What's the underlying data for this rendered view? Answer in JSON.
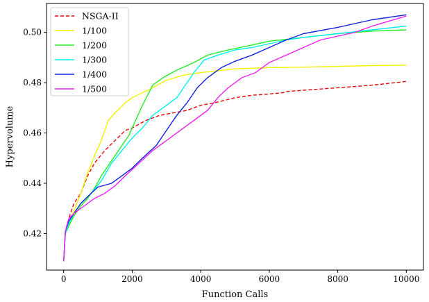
{
  "chart_data": {
    "type": "line",
    "xlabel": "Function Calls",
    "ylabel": "Hypervolume",
    "xlim": [
      -500,
      10500
    ],
    "ylim": [
      0.4055,
      0.5115
    ],
    "xticks": [
      0,
      2000,
      4000,
      6000,
      8000,
      10000
    ],
    "xtick_labels": [
      "0",
      "2000",
      "4000",
      "6000",
      "8000",
      "10000"
    ],
    "yticks": [
      0.42,
      0.44,
      0.46,
      0.48,
      0.5
    ],
    "ytick_labels": [
      "0.42",
      "0.44",
      "0.46",
      "0.48",
      "0.50"
    ],
    "grid": false,
    "legend_position": "top-left",
    "series": [
      {
        "name": "NSGA-II",
        "color": "#ee0000",
        "dashed": true,
        "points": [
          [
            0,
            0.409
          ],
          [
            50,
            0.421
          ],
          [
            150,
            0.426
          ],
          [
            300,
            0.432
          ],
          [
            500,
            0.436
          ],
          [
            700,
            0.443
          ],
          [
            900,
            0.448
          ],
          [
            1200,
            0.453
          ],
          [
            1500,
            0.457
          ],
          [
            1800,
            0.461
          ],
          [
            2000,
            0.462
          ],
          [
            2400,
            0.465
          ],
          [
            2800,
            0.467
          ],
          [
            3200,
            0.468
          ],
          [
            3600,
            0.469
          ],
          [
            4000,
            0.471
          ],
          [
            4400,
            0.472
          ],
          [
            5000,
            0.474
          ],
          [
            5500,
            0.475
          ],
          [
            6000,
            0.4755
          ],
          [
            6400,
            0.476
          ],
          [
            6500,
            0.4765
          ],
          [
            7000,
            0.477
          ],
          [
            8000,
            0.478
          ],
          [
            9000,
            0.479
          ],
          [
            10000,
            0.4805
          ]
        ]
      },
      {
        "name": "1/100",
        "color": "#f2f200",
        "dashed": false,
        "points": [
          [
            0,
            0.409
          ],
          [
            50,
            0.42
          ],
          [
            150,
            0.424
          ],
          [
            300,
            0.429
          ],
          [
            500,
            0.436
          ],
          [
            700,
            0.444
          ],
          [
            900,
            0.451
          ],
          [
            1100,
            0.457
          ],
          [
            1300,
            0.465
          ],
          [
            1500,
            0.468
          ],
          [
            1800,
            0.472
          ],
          [
            2000,
            0.474
          ],
          [
            2300,
            0.476
          ],
          [
            2600,
            0.478
          ],
          [
            3000,
            0.481
          ],
          [
            3500,
            0.483
          ],
          [
            4000,
            0.484
          ],
          [
            5000,
            0.4855
          ],
          [
            6000,
            0.486
          ],
          [
            7000,
            0.4862
          ],
          [
            8000,
            0.4865
          ],
          [
            9000,
            0.4868
          ],
          [
            10000,
            0.487
          ]
        ]
      },
      {
        "name": "1/200",
        "color": "#22ee22",
        "dashed": false,
        "points": [
          [
            0,
            0.409
          ],
          [
            50,
            0.42
          ],
          [
            150,
            0.423
          ],
          [
            300,
            0.427
          ],
          [
            500,
            0.431
          ],
          [
            700,
            0.434
          ],
          [
            900,
            0.438
          ],
          [
            1100,
            0.443
          ],
          [
            1300,
            0.447
          ],
          [
            1600,
            0.453
          ],
          [
            1900,
            0.459
          ],
          [
            2100,
            0.465
          ],
          [
            2300,
            0.471
          ],
          [
            2600,
            0.479
          ],
          [
            2900,
            0.482
          ],
          [
            3300,
            0.485
          ],
          [
            3800,
            0.488
          ],
          [
            4200,
            0.491
          ],
          [
            4800,
            0.493
          ],
          [
            5500,
            0.495
          ],
          [
            6000,
            0.4965
          ],
          [
            7000,
            0.498
          ],
          [
            8000,
            0.4995
          ],
          [
            9000,
            0.5005
          ],
          [
            10000,
            0.501
          ]
        ]
      },
      {
        "name": "1/300",
        "color": "#00f0f0",
        "dashed": false,
        "points": [
          [
            0,
            0.409
          ],
          [
            50,
            0.42
          ],
          [
            150,
            0.424
          ],
          [
            300,
            0.428
          ],
          [
            500,
            0.432
          ],
          [
            800,
            0.436
          ],
          [
            1100,
            0.441
          ],
          [
            1400,
            0.448
          ],
          [
            1700,
            0.453
          ],
          [
            2000,
            0.458
          ],
          [
            2300,
            0.462
          ],
          [
            2600,
            0.467
          ],
          [
            3000,
            0.471
          ],
          [
            3300,
            0.474
          ],
          [
            3500,
            0.478
          ],
          [
            3800,
            0.484
          ],
          [
            4100,
            0.489
          ],
          [
            4500,
            0.491
          ],
          [
            5000,
            0.493
          ],
          [
            5500,
            0.494
          ],
          [
            6000,
            0.4955
          ],
          [
            6500,
            0.497
          ],
          [
            7000,
            0.498
          ],
          [
            8000,
            0.4995
          ],
          [
            9000,
            0.501
          ],
          [
            10000,
            0.5025
          ]
        ]
      },
      {
        "name": "1/400",
        "color": "#1122dd",
        "dashed": false,
        "points": [
          [
            0,
            0.409
          ],
          [
            50,
            0.421
          ],
          [
            150,
            0.425
          ],
          [
            300,
            0.428
          ],
          [
            500,
            0.432
          ],
          [
            800,
            0.436
          ],
          [
            1000,
            0.4385
          ],
          [
            1400,
            0.44
          ],
          [
            1700,
            0.443
          ],
          [
            2000,
            0.446
          ],
          [
            2300,
            0.45
          ],
          [
            2700,
            0.455
          ],
          [
            3000,
            0.461
          ],
          [
            3300,
            0.467
          ],
          [
            3600,
            0.472
          ],
          [
            3900,
            0.478
          ],
          [
            4200,
            0.482
          ],
          [
            4600,
            0.486
          ],
          [
            5000,
            0.4885
          ],
          [
            5500,
            0.491
          ],
          [
            6000,
            0.494
          ],
          [
            6500,
            0.497
          ],
          [
            7000,
            0.4995
          ],
          [
            8000,
            0.502
          ],
          [
            9000,
            0.505
          ],
          [
            10000,
            0.507
          ]
        ]
      },
      {
        "name": "1/500",
        "color": "#ee22ee",
        "dashed": false,
        "points": [
          [
            0,
            0.409
          ],
          [
            50,
            0.421
          ],
          [
            150,
            0.426
          ],
          [
            300,
            0.428
          ],
          [
            600,
            0.431
          ],
          [
            900,
            0.434
          ],
          [
            1200,
            0.436
          ],
          [
            1500,
            0.439
          ],
          [
            1800,
            0.443
          ],
          [
            2200,
            0.448
          ],
          [
            2600,
            0.453
          ],
          [
            3000,
            0.457
          ],
          [
            3400,
            0.461
          ],
          [
            3800,
            0.465
          ],
          [
            4200,
            0.469
          ],
          [
            4500,
            0.474
          ],
          [
            4800,
            0.478
          ],
          [
            5200,
            0.482
          ],
          [
            5600,
            0.484
          ],
          [
            6000,
            0.488
          ],
          [
            6500,
            0.491
          ],
          [
            7000,
            0.494
          ],
          [
            7500,
            0.497
          ],
          [
            8000,
            0.4985
          ],
          [
            8500,
            0.5
          ],
          [
            9000,
            0.5025
          ],
          [
            9500,
            0.5045
          ],
          [
            10000,
            0.5065
          ]
        ]
      }
    ]
  }
}
